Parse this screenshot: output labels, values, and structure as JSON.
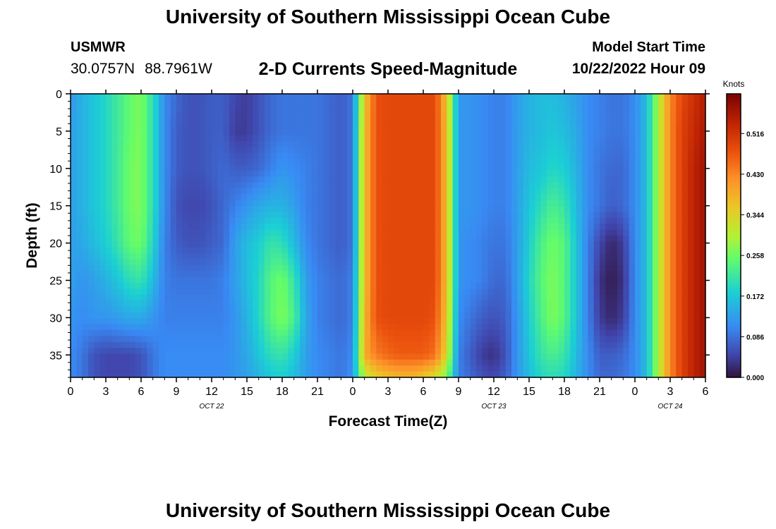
{
  "header": {
    "title": "University of Southern Mississippi Ocean Cube",
    "station": "USMWR",
    "latitude": "30.0757N",
    "longitude": "88.7961W",
    "subtitle": "2-D Currents Speed-Magnitude",
    "model_start_label": "Model Start Time",
    "model_start_value": "10/22/2022 Hour 09",
    "footer_title": "University of Southern Mississippi Ocean Cube"
  },
  "chart_data": {
    "type": "heatmap",
    "title": "2-D Currents Speed-Magnitude",
    "xlabel": "Forecast Time(Z)",
    "ylabel": "Depth (ft)",
    "x_range_hours": [
      0,
      54
    ],
    "y_range_ft": [
      0,
      38
    ],
    "y_inverted": true,
    "x_tick_hours": [
      0,
      3,
      6,
      9,
      12,
      15,
      18,
      21,
      24,
      27,
      30,
      33,
      36,
      39,
      42,
      45,
      48,
      51,
      54
    ],
    "x_tick_labels": [
      "0",
      "3",
      "6",
      "9",
      "12",
      "15",
      "18",
      "21",
      "0",
      "3",
      "6",
      "9",
      "12",
      "15",
      "18",
      "21",
      "0",
      "3",
      "6"
    ],
    "y_ticks": [
      0,
      5,
      10,
      15,
      20,
      25,
      30,
      35
    ],
    "y_tick_labels": [
      "0",
      "5",
      "10",
      "15",
      "20",
      "25",
      "30",
      "35"
    ],
    "date_labels": [
      {
        "text": "OCT 22",
        "hour": 12
      },
      {
        "text": "OCT 23",
        "hour": 36
      },
      {
        "text": "OCT 24",
        "hour": 51
      }
    ],
    "colorbar": {
      "label": "Knots",
      "min": 0.0,
      "max": 0.6,
      "ticks": [
        0.0,
        0.086,
        0.172,
        0.258,
        0.344,
        0.43,
        0.516
      ],
      "tick_labels": [
        "0.000",
        "0.086",
        "0.172",
        "0.258",
        "0.344",
        "0.430",
        "0.516"
      ]
    },
    "grid": {
      "time_hours": [
        0,
        1,
        2,
        3,
        4,
        5,
        6,
        7,
        8,
        9,
        10,
        11,
        12,
        13,
        14,
        15,
        16,
        17,
        18,
        19,
        20,
        21,
        22,
        23,
        24,
        25,
        26,
        27,
        28,
        29,
        30,
        31,
        32,
        33,
        34,
        35,
        36,
        37,
        38,
        39,
        40,
        41,
        42,
        43,
        44,
        45,
        46,
        47,
        48,
        49,
        50,
        51,
        52,
        53,
        54
      ],
      "depth_ft": [
        0,
        5,
        10,
        15,
        20,
        25,
        30,
        35,
        38
      ],
      "speed_knots": [
        [
          0.12,
          0.15,
          0.17,
          0.19,
          0.22,
          0.25,
          0.27,
          0.2,
          0.11,
          0.08,
          0.06,
          0.06,
          0.07,
          0.07,
          0.05,
          0.04,
          0.06,
          0.08,
          0.09,
          0.09,
          0.09,
          0.09,
          0.08,
          0.07,
          0.09,
          0.36,
          0.48,
          0.49,
          0.49,
          0.49,
          0.49,
          0.49,
          0.36,
          0.12,
          0.12,
          0.11,
          0.1,
          0.1,
          0.13,
          0.15,
          0.16,
          0.16,
          0.15,
          0.13,
          0.11,
          0.1,
          0.09,
          0.09,
          0.11,
          0.16,
          0.3,
          0.43,
          0.49,
          0.52,
          0.55
        ],
        [
          0.13,
          0.15,
          0.17,
          0.19,
          0.22,
          0.25,
          0.27,
          0.2,
          0.11,
          0.07,
          0.06,
          0.06,
          0.07,
          0.07,
          0.04,
          0.04,
          0.06,
          0.08,
          0.09,
          0.09,
          0.09,
          0.09,
          0.08,
          0.07,
          0.09,
          0.37,
          0.48,
          0.49,
          0.49,
          0.49,
          0.49,
          0.49,
          0.37,
          0.12,
          0.12,
          0.11,
          0.1,
          0.1,
          0.13,
          0.15,
          0.16,
          0.17,
          0.16,
          0.14,
          0.11,
          0.1,
          0.09,
          0.09,
          0.11,
          0.16,
          0.3,
          0.43,
          0.5,
          0.53,
          0.56
        ],
        [
          0.13,
          0.15,
          0.17,
          0.19,
          0.22,
          0.26,
          0.27,
          0.2,
          0.11,
          0.07,
          0.06,
          0.06,
          0.07,
          0.08,
          0.07,
          0.07,
          0.08,
          0.1,
          0.12,
          0.11,
          0.1,
          0.09,
          0.08,
          0.07,
          0.09,
          0.37,
          0.48,
          0.49,
          0.49,
          0.49,
          0.49,
          0.49,
          0.37,
          0.12,
          0.12,
          0.11,
          0.1,
          0.1,
          0.13,
          0.16,
          0.17,
          0.19,
          0.18,
          0.15,
          0.11,
          0.09,
          0.08,
          0.08,
          0.11,
          0.16,
          0.3,
          0.43,
          0.5,
          0.54,
          0.57
        ],
        [
          0.13,
          0.15,
          0.17,
          0.19,
          0.22,
          0.26,
          0.27,
          0.2,
          0.11,
          0.06,
          0.05,
          0.05,
          0.06,
          0.08,
          0.1,
          0.12,
          0.14,
          0.15,
          0.15,
          0.13,
          0.1,
          0.09,
          0.08,
          0.07,
          0.09,
          0.37,
          0.48,
          0.49,
          0.49,
          0.49,
          0.49,
          0.49,
          0.37,
          0.12,
          0.12,
          0.11,
          0.1,
          0.1,
          0.13,
          0.17,
          0.2,
          0.23,
          0.21,
          0.16,
          0.11,
          0.09,
          0.07,
          0.08,
          0.11,
          0.16,
          0.3,
          0.43,
          0.5,
          0.54,
          0.57
        ],
        [
          0.13,
          0.14,
          0.16,
          0.18,
          0.21,
          0.25,
          0.26,
          0.19,
          0.1,
          0.07,
          0.06,
          0.06,
          0.07,
          0.08,
          0.13,
          0.16,
          0.18,
          0.21,
          0.2,
          0.16,
          0.11,
          0.09,
          0.08,
          0.07,
          0.09,
          0.37,
          0.48,
          0.49,
          0.49,
          0.49,
          0.49,
          0.49,
          0.37,
          0.12,
          0.11,
          0.1,
          0.09,
          0.09,
          0.13,
          0.18,
          0.23,
          0.26,
          0.24,
          0.17,
          0.1,
          0.05,
          0.02,
          0.04,
          0.11,
          0.16,
          0.3,
          0.43,
          0.5,
          0.54,
          0.57
        ],
        [
          0.13,
          0.12,
          0.13,
          0.15,
          0.17,
          0.2,
          0.21,
          0.16,
          0.1,
          0.09,
          0.09,
          0.09,
          0.09,
          0.1,
          0.13,
          0.16,
          0.19,
          0.24,
          0.26,
          0.21,
          0.13,
          0.1,
          0.09,
          0.08,
          0.1,
          0.37,
          0.48,
          0.49,
          0.49,
          0.49,
          0.49,
          0.49,
          0.37,
          0.12,
          0.11,
          0.1,
          0.08,
          0.08,
          0.13,
          0.19,
          0.24,
          0.27,
          0.24,
          0.17,
          0.1,
          0.03,
          0.01,
          0.03,
          0.11,
          0.16,
          0.3,
          0.43,
          0.5,
          0.54,
          0.57
        ],
        [
          0.12,
          0.11,
          0.12,
          0.12,
          0.13,
          0.14,
          0.14,
          0.12,
          0.1,
          0.1,
          0.1,
          0.1,
          0.1,
          0.1,
          0.12,
          0.15,
          0.19,
          0.24,
          0.27,
          0.23,
          0.14,
          0.1,
          0.09,
          0.08,
          0.1,
          0.38,
          0.48,
          0.49,
          0.49,
          0.49,
          0.49,
          0.48,
          0.36,
          0.11,
          0.09,
          0.07,
          0.06,
          0.07,
          0.12,
          0.18,
          0.23,
          0.27,
          0.24,
          0.17,
          0.1,
          0.04,
          0.02,
          0.04,
          0.11,
          0.16,
          0.3,
          0.43,
          0.5,
          0.54,
          0.57
        ],
        [
          0.11,
          0.09,
          0.06,
          0.05,
          0.05,
          0.05,
          0.06,
          0.09,
          0.11,
          0.11,
          0.11,
          0.11,
          0.11,
          0.11,
          0.12,
          0.14,
          0.17,
          0.2,
          0.21,
          0.18,
          0.13,
          0.11,
          0.1,
          0.09,
          0.11,
          0.39,
          0.44,
          0.46,
          0.47,
          0.47,
          0.47,
          0.45,
          0.34,
          0.1,
          0.07,
          0.04,
          0.03,
          0.06,
          0.12,
          0.17,
          0.21,
          0.23,
          0.21,
          0.16,
          0.11,
          0.07,
          0.07,
          0.08,
          0.11,
          0.16,
          0.3,
          0.43,
          0.5,
          0.54,
          0.57
        ],
        [
          0.11,
          0.09,
          0.06,
          0.05,
          0.05,
          0.05,
          0.06,
          0.09,
          0.11,
          0.11,
          0.11,
          0.11,
          0.11,
          0.11,
          0.12,
          0.13,
          0.15,
          0.17,
          0.18,
          0.16,
          0.13,
          0.11,
          0.1,
          0.09,
          0.12,
          0.31,
          0.35,
          0.37,
          0.38,
          0.38,
          0.36,
          0.33,
          0.26,
          0.1,
          0.08,
          0.06,
          0.05,
          0.07,
          0.12,
          0.16,
          0.19,
          0.2,
          0.19,
          0.15,
          0.11,
          0.08,
          0.08,
          0.09,
          0.11,
          0.16,
          0.3,
          0.43,
          0.5,
          0.54,
          0.57
        ]
      ]
    }
  }
}
